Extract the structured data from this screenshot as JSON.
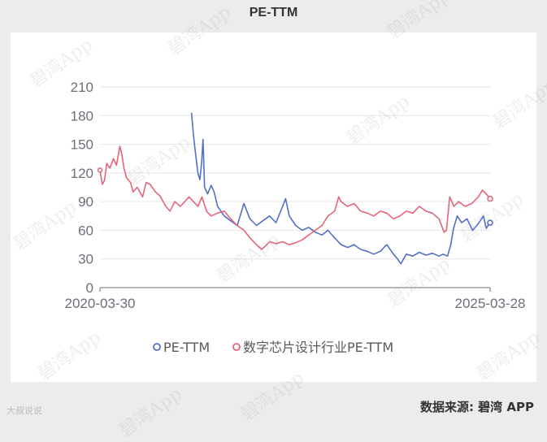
{
  "title": "PE-TTM",
  "source_label": "数据来源: 碧湾 APP",
  "corner_label": "大叔说说",
  "watermark": "碧湾App",
  "chart_data": {
    "type": "line",
    "title": "PE-TTM",
    "x_range": [
      "2020-03-30",
      "2025-03-28"
    ],
    "x_tick_labels": [
      "2020-03-30",
      "2025-03-28"
    ],
    "ylim": [
      0,
      210
    ],
    "y_ticks": [
      0,
      30,
      60,
      90,
      120,
      150,
      180,
      210
    ],
    "grid": true,
    "legend_position": "bottom",
    "series": [
      {
        "name": "PE-TTM",
        "color": "#5470c6",
        "points": [
          [
            "2021-06-01",
            183
          ],
          [
            "2021-06-10",
            160
          ],
          [
            "2021-06-20",
            140
          ],
          [
            "2021-07-01",
            120
          ],
          [
            "2021-07-10",
            113
          ],
          [
            "2021-07-18",
            130
          ],
          [
            "2021-07-25",
            155
          ],
          [
            "2021-08-01",
            105
          ],
          [
            "2021-08-15",
            98
          ],
          [
            "2021-09-01",
            107
          ],
          [
            "2021-09-15",
            100
          ],
          [
            "2021-10-01",
            85
          ],
          [
            "2021-11-01",
            75
          ],
          [
            "2021-12-01",
            70
          ],
          [
            "2022-01-01",
            65
          ],
          [
            "2022-02-01",
            88
          ],
          [
            "2022-03-01",
            72
          ],
          [
            "2022-04-01",
            65
          ],
          [
            "2022-05-01",
            70
          ],
          [
            "2022-06-01",
            75
          ],
          [
            "2022-07-01",
            68
          ],
          [
            "2022-08-01",
            85
          ],
          [
            "2022-08-15",
            93
          ],
          [
            "2022-09-01",
            75
          ],
          [
            "2022-10-01",
            65
          ],
          [
            "2022-11-01",
            60
          ],
          [
            "2022-12-01",
            63
          ],
          [
            "2023-01-01",
            58
          ],
          [
            "2023-02-01",
            55
          ],
          [
            "2023-03-01",
            60
          ],
          [
            "2023-04-01",
            52
          ],
          [
            "2023-05-01",
            45
          ],
          [
            "2023-06-01",
            42
          ],
          [
            "2023-07-01",
            45
          ],
          [
            "2023-08-01",
            40
          ],
          [
            "2023-09-01",
            38
          ],
          [
            "2023-10-01",
            35
          ],
          [
            "2023-11-01",
            38
          ],
          [
            "2023-12-01",
            45
          ],
          [
            "2024-01-01",
            35
          ],
          [
            "2024-01-20",
            30
          ],
          [
            "2024-02-05",
            25
          ],
          [
            "2024-03-01",
            35
          ],
          [
            "2024-04-01",
            33
          ],
          [
            "2024-05-01",
            37
          ],
          [
            "2024-06-01",
            34
          ],
          [
            "2024-07-01",
            36
          ],
          [
            "2024-08-01",
            33
          ],
          [
            "2024-08-20",
            35
          ],
          [
            "2024-09-10",
            33
          ],
          [
            "2024-09-25",
            45
          ],
          [
            "2024-10-08",
            62
          ],
          [
            "2024-10-25",
            75
          ],
          [
            "2024-11-15",
            68
          ],
          [
            "2024-12-10",
            72
          ],
          [
            "2025-01-05",
            60
          ],
          [
            "2025-01-25",
            65
          ],
          [
            "2025-02-10",
            70
          ],
          [
            "2025-02-25",
            75
          ],
          [
            "2025-03-10",
            62
          ],
          [
            "2025-03-28",
            68
          ]
        ]
      },
      {
        "name": "数字芯片设计行业PE-TTM",
        "color": "#e5647a",
        "points": [
          [
            "2020-03-30",
            123
          ],
          [
            "2020-04-10",
            108
          ],
          [
            "2020-04-20",
            112
          ],
          [
            "2020-05-01",
            130
          ],
          [
            "2020-05-15",
            125
          ],
          [
            "2020-06-01",
            135
          ],
          [
            "2020-06-15",
            128
          ],
          [
            "2020-07-01",
            148
          ],
          [
            "2020-07-10",
            140
          ],
          [
            "2020-07-20",
            125
          ],
          [
            "2020-08-01",
            115
          ],
          [
            "2020-08-20",
            110
          ],
          [
            "2020-09-01",
            100
          ],
          [
            "2020-09-20",
            105
          ],
          [
            "2020-10-15",
            95
          ],
          [
            "2020-11-01",
            110
          ],
          [
            "2020-11-20",
            108
          ],
          [
            "2020-12-15",
            100
          ],
          [
            "2021-01-05",
            96
          ],
          [
            "2021-02-01",
            85
          ],
          [
            "2021-02-20",
            80
          ],
          [
            "2021-03-15",
            90
          ],
          [
            "2021-04-10",
            85
          ],
          [
            "2021-05-01",
            90
          ],
          [
            "2021-05-20",
            95
          ],
          [
            "2021-06-10",
            90
          ],
          [
            "2021-07-01",
            85
          ],
          [
            "2021-07-20",
            95
          ],
          [
            "2021-08-10",
            80
          ],
          [
            "2021-09-01",
            75
          ],
          [
            "2021-10-01",
            78
          ],
          [
            "2021-11-01",
            80
          ],
          [
            "2021-12-01",
            72
          ],
          [
            "2022-01-01",
            65
          ],
          [
            "2022-02-01",
            60
          ],
          [
            "2022-03-01",
            52
          ],
          [
            "2022-04-01",
            45
          ],
          [
            "2022-04-25",
            40
          ],
          [
            "2022-05-15",
            44
          ],
          [
            "2022-06-01",
            48
          ],
          [
            "2022-07-01",
            46
          ],
          [
            "2022-08-01",
            48
          ],
          [
            "2022-09-01",
            45
          ],
          [
            "2022-10-01",
            47
          ],
          [
            "2022-11-01",
            50
          ],
          [
            "2022-12-01",
            55
          ],
          [
            "2023-01-01",
            60
          ],
          [
            "2023-02-01",
            65
          ],
          [
            "2023-03-01",
            75
          ],
          [
            "2023-04-01",
            80
          ],
          [
            "2023-04-20",
            95
          ],
          [
            "2023-05-01",
            90
          ],
          [
            "2023-06-01",
            85
          ],
          [
            "2023-07-01",
            88
          ],
          [
            "2023-08-01",
            80
          ],
          [
            "2023-09-01",
            78
          ],
          [
            "2023-10-01",
            75
          ],
          [
            "2023-11-01",
            80
          ],
          [
            "2023-12-01",
            78
          ],
          [
            "2024-01-01",
            72
          ],
          [
            "2024-02-01",
            75
          ],
          [
            "2024-03-01",
            80
          ],
          [
            "2024-04-01",
            78
          ],
          [
            "2024-05-01",
            85
          ],
          [
            "2024-06-01",
            80
          ],
          [
            "2024-07-01",
            78
          ],
          [
            "2024-08-01",
            72
          ],
          [
            "2024-08-25",
            58
          ],
          [
            "2024-09-05",
            60
          ],
          [
            "2024-09-20",
            95
          ],
          [
            "2024-10-10",
            85
          ],
          [
            "2024-11-01",
            90
          ],
          [
            "2024-12-01",
            85
          ],
          [
            "2025-01-01",
            88
          ],
          [
            "2025-02-01",
            95
          ],
          [
            "2025-02-20",
            102
          ],
          [
            "2025-03-10",
            98
          ],
          [
            "2025-03-28",
            93
          ]
        ]
      }
    ]
  }
}
